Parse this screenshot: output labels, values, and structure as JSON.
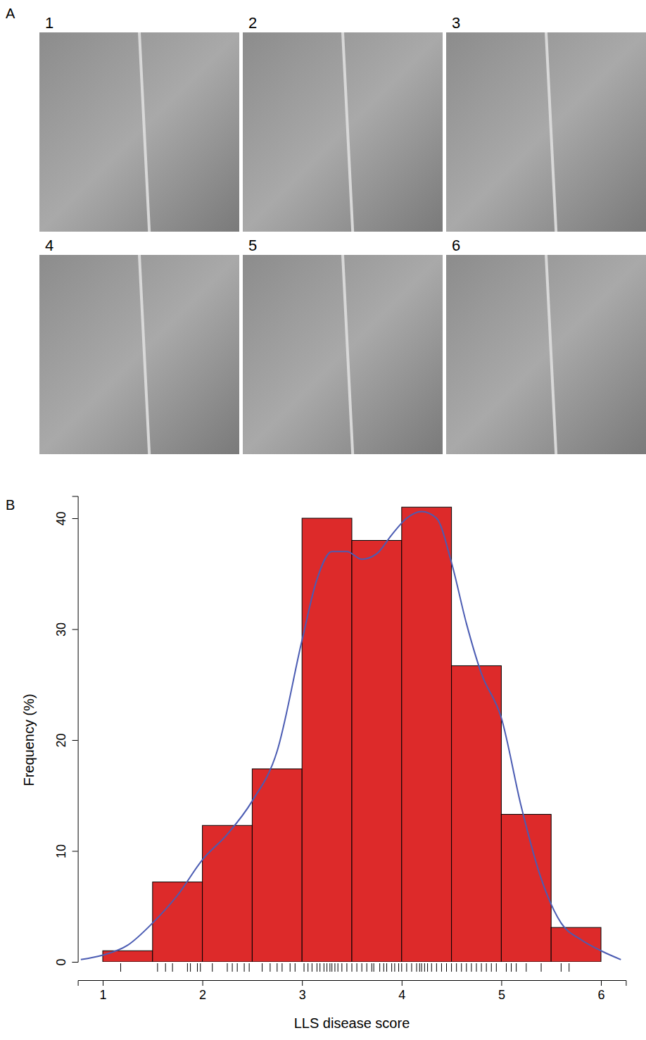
{
  "panels": [
    {
      "label": "A",
      "image_labels": [
        "1",
        "2",
        "3",
        "4",
        "5",
        "6"
      ]
    },
    {
      "label": "B"
    }
  ],
  "chart_data": {
    "type": "histogram",
    "x_label": "LLS disease score",
    "y_label": "Frequency (%)",
    "bins": [
      1,
      1.5,
      2,
      2.5,
      3,
      3.5,
      4,
      4.5,
      5,
      5.5,
      6
    ],
    "values": [
      1,
      7.2,
      12.3,
      17.4,
      40,
      38,
      41,
      26.7,
      13.3,
      3.1
    ],
    "color": "#dd2a2a",
    "density": {
      "x": [
        0.78,
        1,
        1.25,
        1.5,
        1.75,
        2,
        2.25,
        2.5,
        2.75,
        3,
        3.15,
        3.3,
        3.45,
        3.6,
        3.75,
        3.9,
        4.05,
        4.2,
        4.35,
        4.5,
        4.65,
        4.8,
        5,
        5.2,
        5.4,
        5.6,
        5.8,
        6,
        6.2
      ],
      "values": [
        0.2,
        0.6,
        1.5,
        3.5,
        6,
        9.2,
        11.5,
        14.5,
        19,
        29,
        34.5,
        37,
        37,
        36.3,
        36.8,
        38.5,
        40,
        40.6,
        40,
        36,
        30.5,
        26,
        22,
        14,
        7.5,
        3.5,
        2,
        1,
        0.2
      ],
      "color": "#4b5cb3"
    },
    "rug": [
      1.18,
      1.55,
      1.63,
      1.7,
      1.85,
      1.88,
      1.95,
      1.98,
      2.1,
      2.25,
      2.3,
      2.35,
      2.42,
      2.47,
      2.6,
      2.68,
      2.75,
      2.8,
      2.88,
      2.93,
      3.02,
      3.06,
      3.1,
      3.15,
      3.18,
      3.22,
      3.25,
      3.28,
      3.3,
      3.33,
      3.36,
      3.4,
      3.45,
      3.5,
      3.55,
      3.6,
      3.65,
      3.7,
      3.72,
      3.78,
      3.82,
      3.85,
      3.9,
      3.93,
      3.97,
      4.0,
      4.05,
      4.1,
      4.15,
      4.18,
      4.2,
      4.23,
      4.26,
      4.3,
      4.35,
      4.4,
      4.45,
      4.5,
      4.55,
      4.6,
      4.65,
      4.7,
      4.75,
      4.8,
      4.85,
      4.9,
      4.95,
      5.05,
      5.1,
      5.15,
      5.25,
      5.4,
      5.6,
      5.68
    ],
    "xlim": [
      0.75,
      6.25
    ],
    "xticks": [
      1,
      2,
      3,
      4,
      5,
      6
    ],
    "ylim": [
      0,
      42
    ],
    "yticks": [
      0,
      10,
      20,
      30,
      40
    ]
  }
}
